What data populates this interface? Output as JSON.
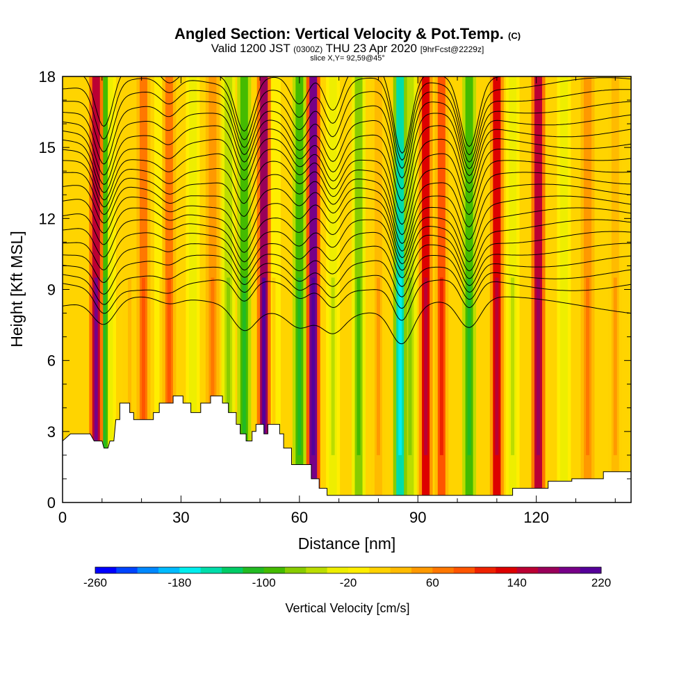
{
  "title": {
    "main": "Angled Section: Vertical Velocity & Pot.Temp.",
    "units": "(C)",
    "valid_prefix": "Valid 1200 JST",
    "valid_utc": "(0300Z)",
    "valid_date": "THU 23 Apr 2020",
    "forecast": "[9hrFcst@2229z]",
    "slice": "slice X,Y= 92,59@45°"
  },
  "chart_data": {
    "type": "heatmap",
    "xlabel": "Distance [nm]",
    "ylabel": "Height [Kft MSL]",
    "xlim": [
      0,
      144
    ],
    "ylim": [
      0,
      18
    ],
    "xticks": [
      0,
      30,
      60,
      90,
      120
    ],
    "yticks": [
      0,
      3,
      6,
      9,
      12,
      15,
      18
    ],
    "colorbar": {
      "label": "Vertical Velocity [cm/s]",
      "min": -260,
      "max": 220,
      "step": 20,
      "tick_values": [
        -260,
        -180,
        -100,
        -20,
        60,
        140,
        220
      ],
      "colors": [
        "#0000ff",
        "#0044ff",
        "#0088ff",
        "#00bbff",
        "#00eeee",
        "#00ddaa",
        "#00cc66",
        "#22bb22",
        "#44bb00",
        "#88cc00",
        "#bbdd00",
        "#eeee00",
        "#ffee00",
        "#ffd200",
        "#ffbb00",
        "#ff9900",
        "#ff7700",
        "#ff5500",
        "#ee2200",
        "#dd0000",
        "#bb0033",
        "#99005a",
        "#770088",
        "#550099"
      ]
    },
    "terrain_profile": [
      [
        0,
        2.6
      ],
      [
        2,
        2.9
      ],
      [
        7,
        2.9
      ],
      [
        8,
        2.6
      ],
      [
        10,
        2.6
      ],
      [
        10.5,
        2.3
      ],
      [
        11.5,
        2.3
      ],
      [
        12,
        2.6
      ],
      [
        13,
        2.6
      ],
      [
        13.5,
        3.5
      ],
      [
        14.5,
        3.5
      ],
      [
        14.5,
        4.2
      ],
      [
        17,
        4.2
      ],
      [
        17,
        3.8
      ],
      [
        18,
        3.8
      ],
      [
        18,
        3.5
      ],
      [
        23,
        3.5
      ],
      [
        23,
        3.8
      ],
      [
        24.5,
        3.8
      ],
      [
        24.5,
        4.2
      ],
      [
        28,
        4.2
      ],
      [
        28,
        4.5
      ],
      [
        30.5,
        4.5
      ],
      [
        30.5,
        4.2
      ],
      [
        32.5,
        4.2
      ],
      [
        32.5,
        3.8
      ],
      [
        35,
        3.8
      ],
      [
        35,
        4.2
      ],
      [
        37.5,
        4.2
      ],
      [
        37.5,
        4.5
      ],
      [
        40.5,
        4.5
      ],
      [
        40.5,
        4.2
      ],
      [
        42,
        4.2
      ],
      [
        42,
        3.8
      ],
      [
        44,
        3.8
      ],
      [
        44,
        3.3
      ],
      [
        45,
        3.3
      ],
      [
        45,
        2.9
      ],
      [
        46.5,
        2.9
      ],
      [
        46.5,
        2.6
      ],
      [
        48,
        2.6
      ],
      [
        48,
        3.0
      ],
      [
        49,
        3.0
      ],
      [
        49,
        3.3
      ],
      [
        51,
        3.3
      ],
      [
        51,
        2.9
      ],
      [
        52,
        2.9
      ],
      [
        52,
        3.3
      ],
      [
        55,
        3.3
      ],
      [
        55,
        2.9
      ],
      [
        56,
        2.9
      ],
      [
        56,
        2.3
      ],
      [
        58,
        2.3
      ],
      [
        58,
        1.6
      ],
      [
        63,
        1.6
      ],
      [
        63,
        1.0
      ],
      [
        65,
        1.0
      ],
      [
        65,
        0.6
      ],
      [
        67,
        0.6
      ],
      [
        67,
        0.3
      ],
      [
        114,
        0.3
      ],
      [
        114,
        0.6
      ],
      [
        123,
        0.6
      ],
      [
        123,
        0.9
      ],
      [
        129,
        0.9
      ],
      [
        129,
        1.0
      ],
      [
        137,
        1.0
      ],
      [
        137,
        1.3
      ],
      [
        144,
        1.3
      ]
    ],
    "vertical_velocity_columns": [
      {
        "x": 8.5,
        "vmin": 120,
        "vmax": 180
      },
      {
        "x": 10.5,
        "vmin": -110,
        "vmax": -60
      },
      {
        "x": 11.8,
        "vmin": -60,
        "vmax": -20
      },
      {
        "x": 17,
        "vmin": -20,
        "vmax": 20
      },
      {
        "x": 20.5,
        "vmin": 60,
        "vmax": 80
      },
      {
        "x": 25,
        "vmin": -30,
        "vmax": 0
      },
      {
        "x": 27,
        "vmin": 60,
        "vmax": 80
      },
      {
        "x": 33,
        "vmin": -40,
        "vmax": -20
      },
      {
        "x": 38,
        "vmin": 40,
        "vmax": 60
      },
      {
        "x": 42,
        "vmin": -70,
        "vmax": -40
      },
      {
        "x": 46,
        "vmin": -110,
        "vmax": -80
      },
      {
        "x": 51,
        "vmin": 140,
        "vmax": 200
      },
      {
        "x": 53.5,
        "vmin": -40,
        "vmax": 0
      },
      {
        "x": 60,
        "vmin": -110,
        "vmax": -70
      },
      {
        "x": 63.5,
        "vmin": 160,
        "vmax": 220
      },
      {
        "x": 68.5,
        "vmin": -60,
        "vmax": -20
      },
      {
        "x": 75,
        "vmin": -90,
        "vmax": -40
      },
      {
        "x": 80,
        "vmin": 20,
        "vmax": 40
      },
      {
        "x": 85.5,
        "vmin": -180,
        "vmax": -120
      },
      {
        "x": 88,
        "vmin": -80,
        "vmax": -40
      },
      {
        "x": 92,
        "vmin": 100,
        "vmax": 140
      },
      {
        "x": 96,
        "vmin": 60,
        "vmax": 100
      },
      {
        "x": 103,
        "vmin": -110,
        "vmax": -70
      },
      {
        "x": 110,
        "vmin": 100,
        "vmax": 140
      },
      {
        "x": 114,
        "vmin": -60,
        "vmax": -20
      },
      {
        "x": 120.5,
        "vmin": 120,
        "vmax": 160
      },
      {
        "x": 127,
        "vmin": -40,
        "vmax": -20
      },
      {
        "x": 133,
        "vmin": 40,
        "vmax": 60
      },
      {
        "x": 140,
        "vmin": 20,
        "vmax": 40
      }
    ],
    "isentrope_wave_centers": [
      {
        "x": 10.5,
        "depth": 1.5
      },
      {
        "x": 27,
        "depth": 0.4
      },
      {
        "x": 46,
        "depth": 1.4
      },
      {
        "x": 60,
        "depth": 0.8
      },
      {
        "x": 68.5,
        "depth": 1.1
      },
      {
        "x": 86,
        "depth": 2.2
      },
      {
        "x": 103,
        "depth": 1.8
      }
    ]
  }
}
